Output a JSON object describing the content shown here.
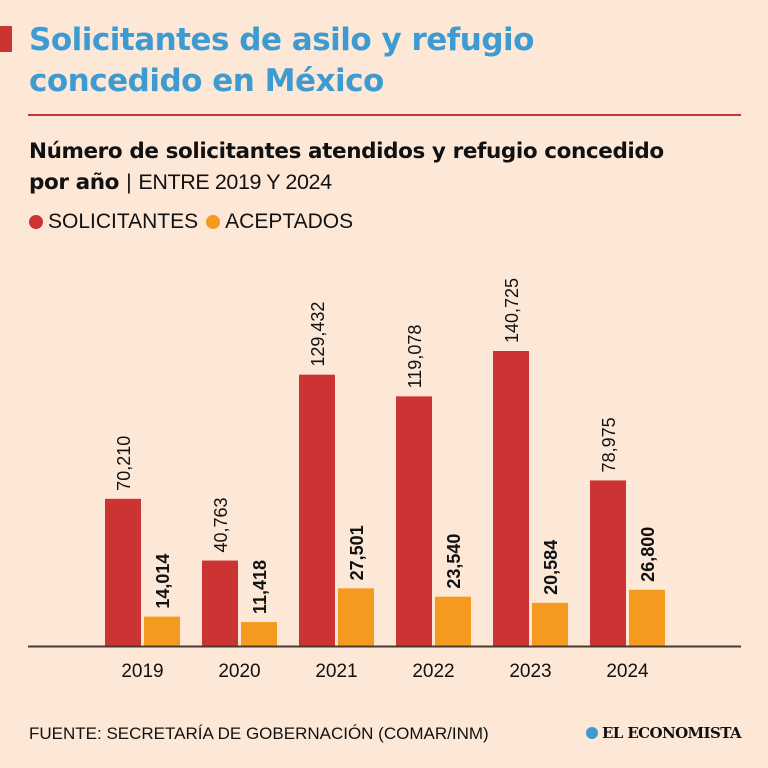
{
  "header": {
    "title_line1": "Solicitantes de asilo y refugio",
    "title_line2": "concedido en México",
    "subtitle_bold_1": "Número de solicitantes atendidos y refugio concedido",
    "subtitle_bold_2": "por año",
    "subtitle_separator": "|",
    "subtitle_light": "ENTRE 2019 Y 2024"
  },
  "colors": {
    "background": "#fde8d7",
    "title": "#3d9bd2",
    "solicitantes": "#cc3333",
    "aceptados": "#f5991f"
  },
  "chart_data": {
    "type": "bar",
    "title": "Número de solicitantes atendidos y refugio concedido por año",
    "categories": [
      "2019",
      "2020",
      "2021",
      "2022",
      "2023",
      "2024"
    ],
    "series": [
      {
        "name": "SOLICITANTES",
        "values": [
          70210,
          40763,
          129432,
          119078,
          140725,
          78975
        ],
        "labels": [
          "70,210",
          "40,763",
          "129,432",
          "119,078",
          "140,725",
          "78,975"
        ]
      },
      {
        "name": "ACEPTADOS",
        "values": [
          14014,
          11418,
          27501,
          23540,
          20584,
          26800
        ],
        "labels": [
          "14,014",
          "11,418",
          "27,501",
          "23,540",
          "20,584",
          "26,800"
        ]
      }
    ],
    "ylim": [
      0,
      150000
    ],
    "legend": "top-left",
    "grid": false
  },
  "footer": {
    "source": "FUENTE: SECRETARÍA DE GOBERNACIÓN (COMAR/INM)",
    "brand": "EL ECONOMISTA"
  }
}
